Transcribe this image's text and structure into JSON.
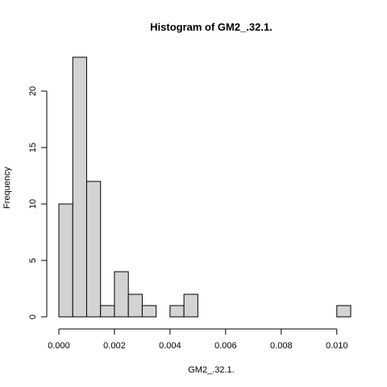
{
  "chart_data": {
    "type": "bar",
    "title": "Histogram of GM2_.32.1.",
    "xlabel": "GM2_.32.1.",
    "ylabel": "Frequency",
    "bin_width": 0.0005,
    "bin_edges": [
      0.0,
      0.0005,
      0.001,
      0.0015,
      0.002,
      0.0025,
      0.003,
      0.0035,
      0.004,
      0.0045,
      0.005,
      0.0055,
      0.006,
      0.0065,
      0.007,
      0.0075,
      0.008,
      0.0085,
      0.009,
      0.0095,
      0.01,
      0.0105
    ],
    "values": [
      10,
      23,
      12,
      1,
      4,
      2,
      1,
      0,
      1,
      2,
      0,
      0,
      0,
      0,
      0,
      0,
      0,
      0,
      0,
      0,
      1
    ],
    "xlim": [
      0.0,
      0.0105
    ],
    "ylim": [
      0,
      23
    ],
    "x_ticks": [
      0.0,
      0.002,
      0.004,
      0.006,
      0.008,
      0.01
    ],
    "x_tick_labels": [
      "0.000",
      "0.002",
      "0.004",
      "0.006",
      "0.008",
      "0.010"
    ],
    "y_ticks": [
      0,
      5,
      10,
      15,
      20
    ],
    "y_tick_labels": [
      "0",
      "5",
      "10",
      "15",
      "20"
    ],
    "bar_fill": "#d3d3d3",
    "bar_stroke": "#000000",
    "grid": false
  }
}
